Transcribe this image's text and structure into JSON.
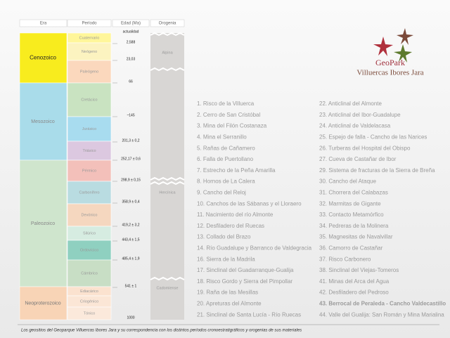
{
  "header": {
    "era": "Era",
    "period": "Período",
    "age": "Edad (Ma)",
    "orogeny": "Orogenia"
  },
  "eras": [
    "Cenozoico",
    "Mesozoico",
    "Paleozoico",
    "Neoproterozoico"
  ],
  "periods": [
    "Cuaternario",
    "Neógeno",
    "Paleógeno",
    "Cretácico",
    "Jurásico",
    "Triásico",
    "Pérmico",
    "Carbonífero",
    "Devónico",
    "Silúrico",
    "Ordovícico",
    "Cámbrico",
    "Ediacárico",
    "Criogénico",
    "Tónico"
  ],
  "ages": [
    "actualidad",
    "2,588",
    "23,03",
    "66",
    "~145",
    "201,3 ± 0,2",
    "252,17 ± 0,6",
    "298,9 ± 0,15",
    "358,9 ± 0,4",
    "419,2 ± 3,2",
    "443,4 ± 1,5",
    "485,4 ± 1,9",
    "541 ± 1",
    "1000"
  ],
  "orogenies": [
    "Alpina",
    "Hercínica",
    "Cadomiense"
  ],
  "logo": {
    "title": "GeoPark",
    "subtitle": "Villuercas Ibores Jara"
  },
  "sites": [
    "1. Risco de la Villuerca",
    "2. Cerro de San Cristóbal",
    "3. Mina del Filón Costanaza",
    "4. Mina el Serranillo",
    "5. Rañas de Cañamero",
    "6. Falla de Puertollano",
    "7. Estrecho de la Peña Amarilla",
    "8. Hornos de La Calera",
    "9. Cancho del Reloj",
    "10. Canchos de las Sábanas y el Lloraero",
    "11. Nacimiento del río Almonte",
    "12. Desfiladero del Ruecas",
    "13. Collado del Brazo",
    "14. Río Guadalupe y Barranco de Valdegracia",
    "16. Sierra de la Madrila",
    "17. Sinclinal del Guadarranque-Gualija",
    "18. Risco Gordo y Sierra del Pimpollar",
    "19. Raña de las Mesillas",
    "20. Apreturas del Almonte",
    "21. Sinclinal de Santa Lucía - Río Ruecas",
    "22. Anticlinal del Almonte",
    "23. Anticlinal del Ibor-Guadalupe",
    "24. Anticlinal de Valdelacasa",
    "25. Espejo de falla - Cancho de las Narices",
    "26. Turberas del Hospital del Obispo",
    "27. Cueva de Castañar de Ibor",
    "29. Sistema de fracturas de la Sierra de Breña",
    "30. Cancho del Ataque",
    "31. Chorrera del Calabazas",
    "32. Marmitas de Gigante",
    "33. Contacto Metamórfico",
    "34. Pedreras de la Molinera",
    "35. Magnesitas de Navalvillar",
    "36. Camorro de Castañar",
    "37. Risco Carbonero",
    "38. Sinclinal del Viejas-Tomeros",
    "41. Minas del Arca del Agua",
    "42. Desfiladero del Pedroso",
    "43. Berrocal de Peraleda - Cancho Valdecastillo",
    "44. Valle del Gualija: San Román y Mina Marialina"
  ],
  "caption": "Los geositios del Geoparque Villuercas Ibores Jara y su correspondencia con los distintos períodos cronoestratigráficos y orogenias de sus materiales"
}
